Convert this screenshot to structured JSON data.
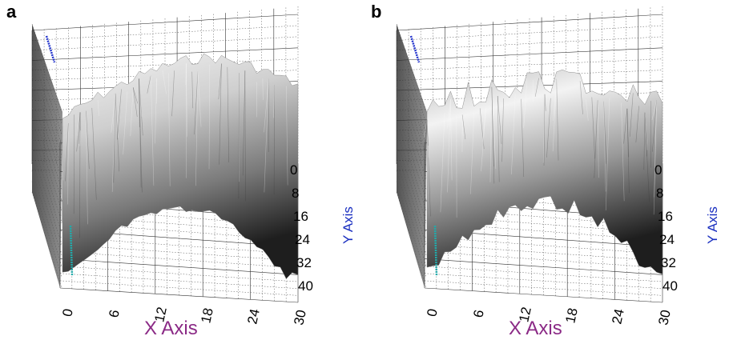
{
  "chart_data": [
    {
      "panel": "a",
      "type": "surface",
      "xlabel": "X Axis",
      "ylabel": "Y Axis",
      "xticks": [
        "0",
        "6",
        "12",
        "18",
        "24",
        "30"
      ],
      "yticks": [
        "0",
        "8",
        "16",
        "24",
        "32",
        "40"
      ],
      "xlim": [
        0,
        30
      ],
      "ylim": [
        0,
        40
      ],
      "grid": true
    },
    {
      "panel": "b",
      "type": "surface",
      "xlabel": "X Axis",
      "ylabel": "Y Axis",
      "xticks": [
        "0",
        "6",
        "12",
        "18",
        "24",
        "30"
      ],
      "yticks": [
        "0",
        "8",
        "16",
        "24",
        "32",
        "40"
      ],
      "xlim": [
        0,
        30
      ],
      "ylim": [
        0,
        40
      ],
      "grid": true
    }
  ],
  "colors": {
    "x_axis_label": "#8b2a86",
    "y_axis_label": "#1a2fc0",
    "surface_light": "#f4f4f4",
    "surface_dark": "#202020",
    "marker_blue": "#2233cc",
    "marker_cyan": "#22aaaa"
  }
}
